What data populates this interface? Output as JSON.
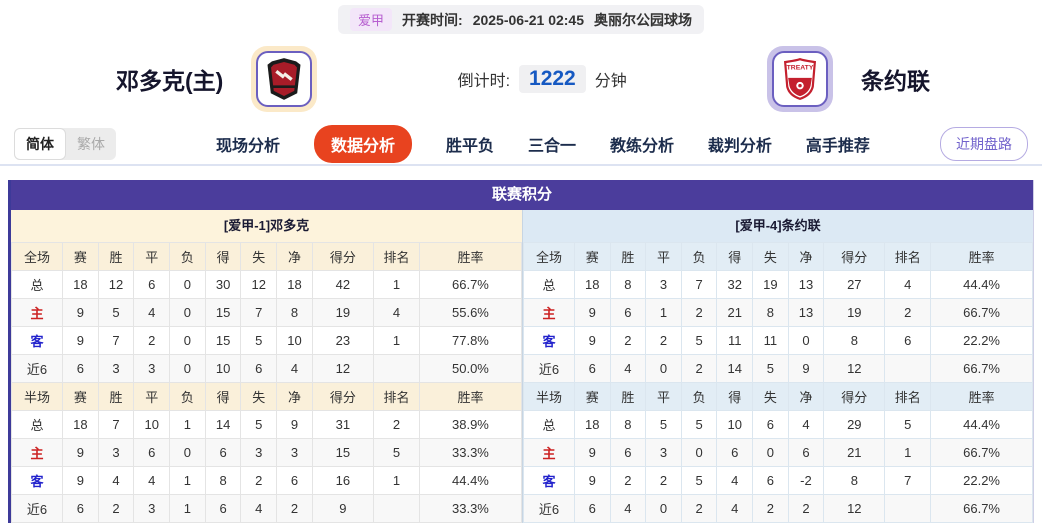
{
  "top_bar": {
    "league_tag": "爱甲",
    "kickoff_label": "开赛时间:",
    "kickoff_time": "2025-06-21 02:45",
    "venue": "奥丽尔公园球场"
  },
  "match_header": {
    "home_team": "邓多克(主)",
    "away_team": "条约联",
    "countdown_label": "倒计时:",
    "countdown_value": "1222",
    "countdown_unit": "分钟",
    "away_badge_text": "TREATY"
  },
  "nav": {
    "lang_simplified": "简体",
    "lang_traditional": "繁体",
    "tabs": [
      {
        "label": "现场分析",
        "active": false
      },
      {
        "label": "数据分析",
        "active": true
      },
      {
        "label": "胜平负",
        "active": false
      },
      {
        "label": "三合一",
        "active": false
      },
      {
        "label": "教练分析",
        "active": false
      },
      {
        "label": "裁判分析",
        "active": false
      },
      {
        "label": "高手推荐",
        "active": false
      }
    ],
    "recent_trend_button": "近期盘路"
  },
  "league_table": {
    "title": "联赛积分",
    "columns_fulltime": [
      "全场",
      "赛",
      "胜",
      "平",
      "负",
      "得",
      "失",
      "净",
      "得分",
      "排名",
      "胜率"
    ],
    "columns_halftime": [
      "半场",
      "赛",
      "胜",
      "平",
      "负",
      "得",
      "失",
      "净",
      "得分",
      "排名",
      "胜率"
    ],
    "teams": [
      {
        "section_title": "[爱甲-1]邓多克",
        "fulltime": [
          {
            "label": "总",
            "values": [
              "18",
              "12",
              "6",
              "0",
              "30",
              "12",
              "18",
              "42",
              "1",
              "66.7%"
            ]
          },
          {
            "label": "主",
            "values": [
              "9",
              "5",
              "4",
              "0",
              "15",
              "7",
              "8",
              "19",
              "4",
              "55.6%"
            ]
          },
          {
            "label": "客",
            "values": [
              "9",
              "7",
              "2",
              "0",
              "15",
              "5",
              "10",
              "23",
              "1",
              "77.8%"
            ]
          },
          {
            "label": "近6",
            "values": [
              "6",
              "3",
              "3",
              "0",
              "10",
              "6",
              "4",
              "12",
              "",
              "50.0%"
            ]
          }
        ],
        "halftime": [
          {
            "label": "总",
            "values": [
              "18",
              "7",
              "10",
              "1",
              "14",
              "5",
              "9",
              "31",
              "2",
              "38.9%"
            ]
          },
          {
            "label": "主",
            "values": [
              "9",
              "3",
              "6",
              "0",
              "6",
              "3",
              "3",
              "15",
              "5",
              "33.3%"
            ]
          },
          {
            "label": "客",
            "values": [
              "9",
              "4",
              "4",
              "1",
              "8",
              "2",
              "6",
              "16",
              "1",
              "44.4%"
            ]
          },
          {
            "label": "近6",
            "values": [
              "6",
              "2",
              "3",
              "1",
              "6",
              "4",
              "2",
              "9",
              "",
              "33.3%"
            ]
          }
        ]
      },
      {
        "section_title": "[爱甲-4]条约联",
        "fulltime": [
          {
            "label": "总",
            "values": [
              "18",
              "8",
              "3",
              "7",
              "32",
              "19",
              "13",
              "27",
              "4",
              "44.4%"
            ]
          },
          {
            "label": "主",
            "values": [
              "9",
              "6",
              "1",
              "2",
              "21",
              "8",
              "13",
              "19",
              "2",
              "66.7%"
            ]
          },
          {
            "label": "客",
            "values": [
              "9",
              "2",
              "2",
              "5",
              "11",
              "11",
              "0",
              "8",
              "6",
              "22.2%"
            ]
          },
          {
            "label": "近6",
            "values": [
              "6",
              "4",
              "0",
              "2",
              "14",
              "5",
              "9",
              "12",
              "",
              "66.7%"
            ]
          }
        ],
        "halftime": [
          {
            "label": "总",
            "values": [
              "18",
              "8",
              "5",
              "5",
              "10",
              "6",
              "4",
              "29",
              "5",
              "44.4%"
            ]
          },
          {
            "label": "主",
            "values": [
              "9",
              "6",
              "3",
              "0",
              "6",
              "0",
              "6",
              "21",
              "1",
              "66.7%"
            ]
          },
          {
            "label": "客",
            "values": [
              "9",
              "2",
              "2",
              "5",
              "4",
              "6",
              "-2",
              "8",
              "7",
              "22.2%"
            ]
          },
          {
            "label": "近6",
            "values": [
              "6",
              "4",
              "0",
              "2",
              "4",
              "2",
              "2",
              "12",
              "",
              "66.7%"
            ]
          }
        ]
      }
    ]
  },
  "colors": {
    "title_bar_bg": "#4b3d9c",
    "active_tab_bg": "#e8431f",
    "home_section_bg": "#fdf3dc",
    "away_section_bg": "#dce9f4",
    "countdown_color": "#1659c2",
    "home_label_color": "#cc2222",
    "away_label_color": "#2222cc",
    "league_tag_color": "#b75fd0"
  }
}
